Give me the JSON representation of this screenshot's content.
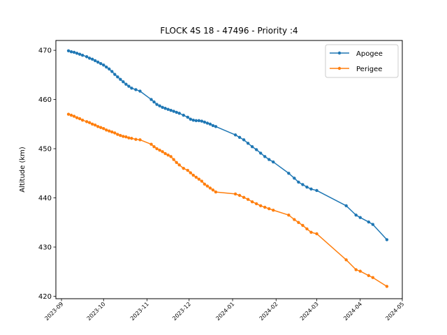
{
  "chart_data": {
    "type": "line",
    "title": "FLOCK 4S 18 - 47496 - Priority :4",
    "ylabel": "Altitude (km)",
    "xlabel": "",
    "x_scale": "time",
    "xlim": [
      "2023-08-28",
      "2024-05-01"
    ],
    "ylim": [
      419.5,
      472.0
    ],
    "y_ticks": [
      420,
      430,
      440,
      450,
      460,
      470
    ],
    "y_tick_labels": [
      "420",
      "430",
      "440",
      "450",
      "460",
      "470"
    ],
    "x_ticks": [
      "2023-09-01",
      "2023-10-01",
      "2023-11-01",
      "2023-12-01",
      "2024-01-01",
      "2024-02-01",
      "2024-03-01",
      "2024-04-01",
      "2024-05-01"
    ],
    "x_tick_labels": [
      "2023-09",
      "2023-10",
      "2023-11",
      "2023-12",
      "2024-01",
      "2024-02",
      "2024-03",
      "2024-04",
      "2024-05"
    ],
    "grid": false,
    "legend": "top-right",
    "markers": true,
    "series": [
      {
        "name": "Apogee",
        "color": "#1f77b4",
        "x": [
          "2023-09-06",
          "2023-09-08",
          "2023-09-10",
          "2023-09-12",
          "2023-09-14",
          "2023-09-16",
          "2023-09-19",
          "2023-09-21",
          "2023-09-23",
          "2023-09-25",
          "2023-09-27",
          "2023-09-29",
          "2023-10-01",
          "2023-10-03",
          "2023-10-05",
          "2023-10-07",
          "2023-10-09",
          "2023-10-11",
          "2023-10-13",
          "2023-10-15",
          "2023-10-17",
          "2023-10-19",
          "2023-10-21",
          "2023-10-24",
          "2023-10-27",
          "2023-11-04",
          "2023-11-06",
          "2023-11-08",
          "2023-11-10",
          "2023-11-12",
          "2023-11-14",
          "2023-11-16",
          "2023-11-18",
          "2023-11-20",
          "2023-11-22",
          "2023-11-24",
          "2023-11-27",
          "2023-11-30",
          "2023-12-02",
          "2023-12-04",
          "2023-12-06",
          "2023-12-08",
          "2023-12-10",
          "2023-12-12",
          "2023-12-14",
          "2023-12-16",
          "2023-12-18",
          "2023-12-20",
          "2024-01-03",
          "2024-01-06",
          "2024-01-09",
          "2024-01-12",
          "2024-01-15",
          "2024-01-18",
          "2024-01-21",
          "2024-01-24",
          "2024-01-27",
          "2024-01-30",
          "2024-02-10",
          "2024-02-14",
          "2024-02-17",
          "2024-02-20",
          "2024-02-23",
          "2024-02-26",
          "2024-03-01",
          "2024-03-22",
          "2024-03-29",
          "2024-04-01",
          "2024-04-07",
          "2024-04-10",
          "2024-04-20"
        ],
        "values": [
          469.9,
          469.7,
          469.6,
          469.4,
          469.2,
          469.0,
          468.7,
          468.4,
          468.2,
          467.9,
          467.6,
          467.3,
          467.0,
          466.6,
          466.2,
          465.7,
          465.1,
          464.6,
          464.1,
          463.6,
          463.1,
          462.7,
          462.3,
          462.0,
          461.7,
          460.0,
          459.5,
          459.0,
          458.7,
          458.4,
          458.2,
          458.0,
          457.8,
          457.6,
          457.4,
          457.2,
          456.8,
          456.4,
          456.0,
          455.8,
          455.7,
          455.7,
          455.6,
          455.4,
          455.2,
          455.0,
          454.7,
          454.5,
          452.8,
          452.3,
          451.8,
          451.1,
          450.4,
          449.8,
          449.1,
          448.4,
          447.8,
          447.3,
          445.0,
          444.0,
          443.2,
          442.7,
          442.2,
          441.8,
          441.5,
          438.4,
          436.5,
          436.0,
          435.1,
          434.6,
          431.5
        ]
      },
      {
        "name": "Perigee",
        "color": "#ff7f0e",
        "x": [
          "2023-09-06",
          "2023-09-08",
          "2023-09-10",
          "2023-09-12",
          "2023-09-14",
          "2023-09-16",
          "2023-09-19",
          "2023-09-21",
          "2023-09-23",
          "2023-09-25",
          "2023-09-27",
          "2023-09-29",
          "2023-10-01",
          "2023-10-03",
          "2023-10-05",
          "2023-10-07",
          "2023-10-09",
          "2023-10-11",
          "2023-10-13",
          "2023-10-15",
          "2023-10-17",
          "2023-10-19",
          "2023-10-21",
          "2023-10-24",
          "2023-10-27",
          "2023-11-04",
          "2023-11-06",
          "2023-11-08",
          "2023-11-10",
          "2023-11-12",
          "2023-11-14",
          "2023-11-16",
          "2023-11-18",
          "2023-11-20",
          "2023-11-22",
          "2023-11-24",
          "2023-11-27",
          "2023-11-30",
          "2023-12-02",
          "2023-12-04",
          "2023-12-06",
          "2023-12-08",
          "2023-12-10",
          "2023-12-12",
          "2023-12-14",
          "2023-12-16",
          "2023-12-18",
          "2023-12-20",
          "2024-01-03",
          "2024-01-06",
          "2024-01-09",
          "2024-01-12",
          "2024-01-15",
          "2024-01-18",
          "2024-01-21",
          "2024-01-24",
          "2024-01-27",
          "2024-01-30",
          "2024-02-10",
          "2024-02-14",
          "2024-02-17",
          "2024-02-20",
          "2024-02-23",
          "2024-02-26",
          "2024-03-01",
          "2024-03-22",
          "2024-03-29",
          "2024-04-01",
          "2024-04-07",
          "2024-04-10",
          "2024-04-20"
        ],
        "values": [
          457.0,
          456.8,
          456.6,
          456.3,
          456.1,
          455.8,
          455.5,
          455.3,
          455.0,
          454.8,
          454.5,
          454.3,
          454.1,
          453.8,
          453.6,
          453.4,
          453.2,
          452.9,
          452.7,
          452.5,
          452.4,
          452.2,
          452.1,
          451.9,
          451.8,
          450.9,
          450.4,
          450.0,
          449.7,
          449.4,
          449.0,
          448.7,
          448.4,
          447.8,
          447.2,
          446.7,
          446.0,
          445.6,
          445.1,
          444.6,
          444.2,
          443.8,
          443.4,
          442.8,
          442.4,
          442.0,
          441.6,
          441.2,
          440.8,
          440.5,
          440.1,
          439.7,
          439.2,
          438.8,
          438.4,
          438.1,
          437.8,
          437.5,
          436.5,
          435.6,
          435.0,
          434.4,
          433.7,
          433.0,
          432.7,
          427.4,
          425.4,
          425.1,
          424.2,
          423.8,
          422.0
        ]
      }
    ]
  }
}
